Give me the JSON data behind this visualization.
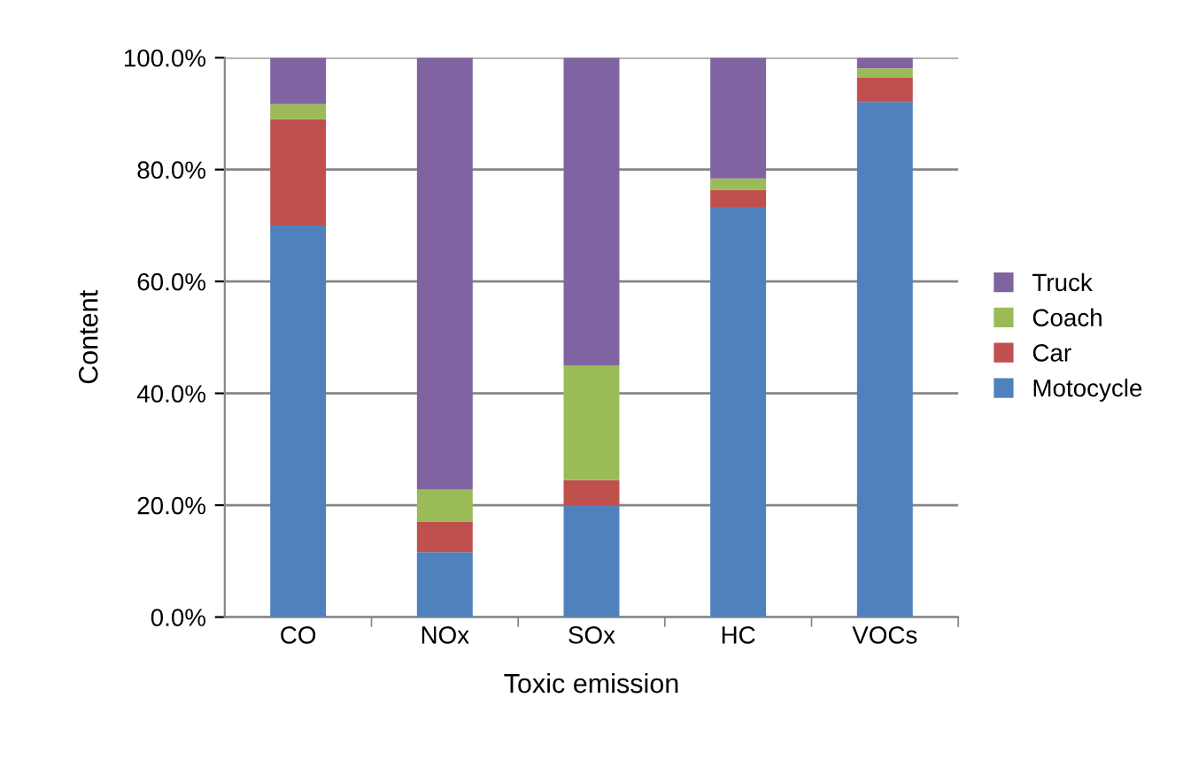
{
  "chart_data": {
    "type": "bar",
    "stacked": true,
    "xlabel": "Toxic emission",
    "ylabel": "Content",
    "categories": [
      "CO",
      "NOx",
      "SOx",
      "HC",
      "VOCs"
    ],
    "series": [
      {
        "name": "Motocycle",
        "color": "#4f81bd",
        "values": [
          70.0,
          11.6,
          20.0,
          73.3,
          92.1
        ]
      },
      {
        "name": "Car",
        "color": "#c0504d",
        "values": [
          19.0,
          5.5,
          4.5,
          3.1,
          4.3
        ]
      },
      {
        "name": "Coach",
        "color": "#9bbb59",
        "values": [
          2.7,
          5.7,
          20.5,
          2.0,
          1.7
        ]
      },
      {
        "name": "Truck",
        "color": "#8064a2",
        "values": [
          8.3,
          77.2,
          55.0,
          21.6,
          1.9
        ]
      }
    ],
    "ylim": [
      0,
      100
    ],
    "yticks": [
      {
        "value": 0,
        "label": "0.0%"
      },
      {
        "value": 20,
        "label": "20.0%"
      },
      {
        "value": 40,
        "label": "40.0%"
      },
      {
        "value": 60,
        "label": "60.0%"
      },
      {
        "value": 80,
        "label": "80.0%"
      },
      {
        "value": 100,
        "label": "100.0%"
      }
    ],
    "grid": "y",
    "legend": "right"
  }
}
